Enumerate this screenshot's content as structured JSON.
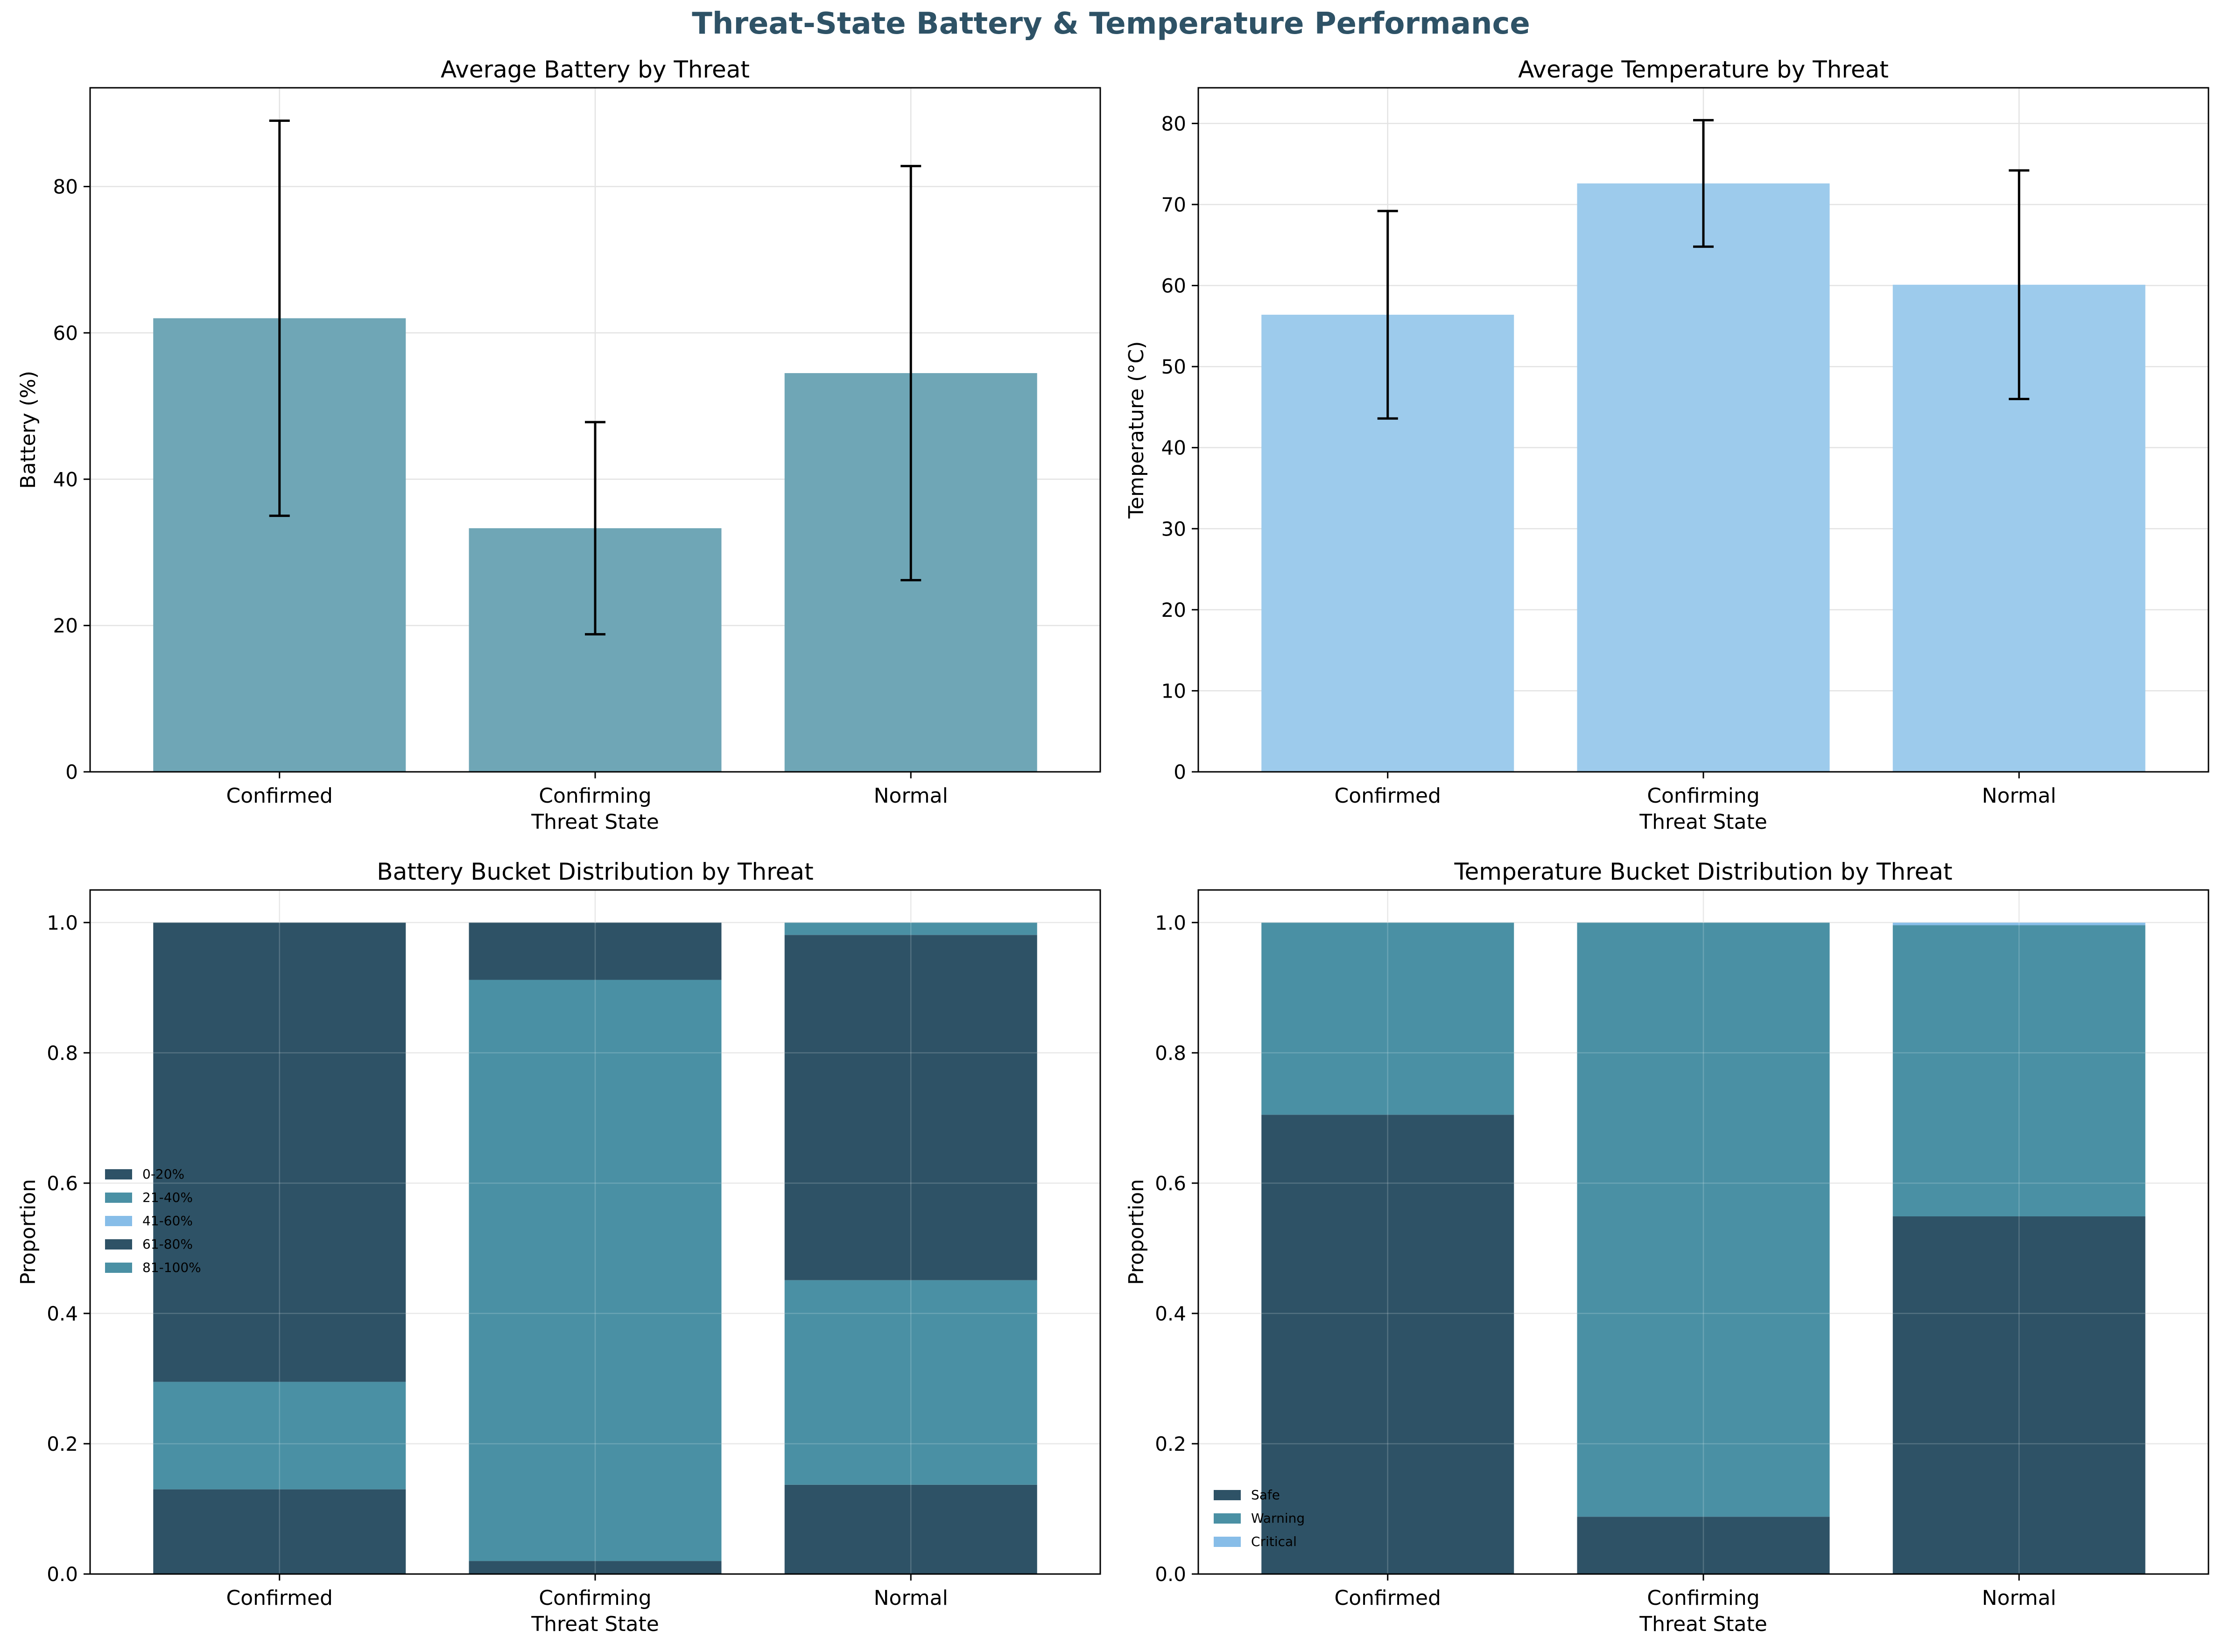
{
  "figure": {
    "suptitle": "Threat-State Battery & Temperature Performance",
    "title_color": "#2e5266"
  },
  "colors": {
    "dark": "#2e5266",
    "teal": "#4a90a4",
    "light": "#87bde8",
    "battery_bar": "#6fa6b6",
    "temp_bar": "#9dcbec",
    "grid": "#e3e3e3"
  },
  "chart_data": [
    {
      "type": "bar",
      "title": "Average Battery by Threat",
      "xlabel": "Threat State",
      "ylabel": "Battery (%)",
      "categories": [
        "Confirmed",
        "Confirming",
        "Normal"
      ],
      "values": [
        62.0,
        33.3,
        54.5
      ],
      "error": [
        27.0,
        14.5,
        28.3
      ],
      "ylim": [
        0,
        93.5
      ],
      "yticks": [
        0,
        20,
        40,
        60,
        80
      ],
      "grid": true
    },
    {
      "type": "bar",
      "title": "Average Temperature by Threat",
      "xlabel": "Threat State",
      "ylabel": "Temperature (°C)",
      "categories": [
        "Confirmed",
        "Confirming",
        "Normal"
      ],
      "values": [
        56.4,
        72.6,
        60.1
      ],
      "error": [
        12.8,
        7.8,
        14.1
      ],
      "ylim": [
        0,
        84.4
      ],
      "yticks": [
        0,
        10,
        20,
        30,
        40,
        50,
        60,
        70,
        80
      ],
      "grid": true
    },
    {
      "type": "bar",
      "stacked": true,
      "title": "Battery Bucket Distribution by Threat",
      "xlabel": "Threat State",
      "ylabel": "Proportion",
      "categories": [
        "Confirmed",
        "Confirming",
        "Normal"
      ],
      "series": [
        {
          "name": "0-20%",
          "values": [
            0.13,
            0.02,
            0.137
          ]
        },
        {
          "name": "21-40%",
          "values": [
            0.165,
            0.892,
            0.314
          ]
        },
        {
          "name": "41-60%",
          "values": [
            0.0,
            0.0,
            0.0
          ]
        },
        {
          "name": "61-80%",
          "values": [
            0.705,
            0.088,
            0.53
          ]
        },
        {
          "name": "81-100%",
          "values": [
            0.0,
            0.0,
            0.019
          ]
        }
      ],
      "ylim": [
        0,
        1.05
      ],
      "yticks": [
        0.0,
        0.2,
        0.4,
        0.6,
        0.8,
        1.0
      ],
      "legend_position": "center-left",
      "grid": true
    },
    {
      "type": "bar",
      "stacked": true,
      "title": "Temperature Bucket Distribution by Threat",
      "xlabel": "Threat State",
      "ylabel": "Proportion",
      "categories": [
        "Confirmed",
        "Confirming",
        "Normal"
      ],
      "series": [
        {
          "name": "Safe",
          "values": [
            0.705,
            0.088,
            0.549
          ]
        },
        {
          "name": "Warning",
          "values": [
            0.295,
            0.912,
            0.447
          ]
        },
        {
          "name": "Critical",
          "values": [
            0.0,
            0.0,
            0.004
          ]
        }
      ],
      "ylim": [
        0,
        1.05
      ],
      "yticks": [
        0.0,
        0.2,
        0.4,
        0.6,
        0.8,
        1.0
      ],
      "legend_position": "lower-left",
      "grid": true
    }
  ]
}
